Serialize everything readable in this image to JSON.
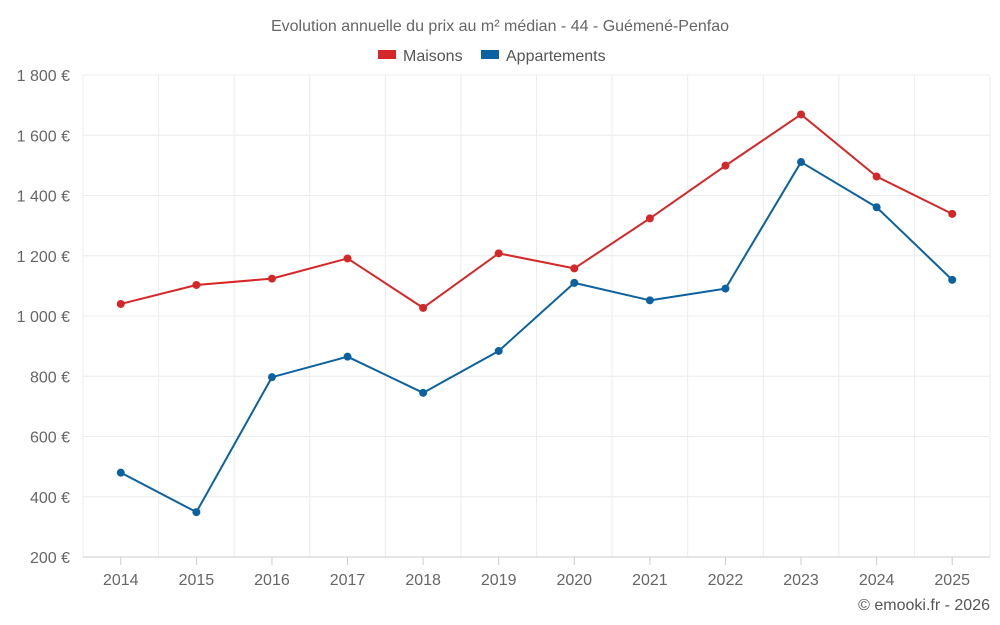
{
  "chart_data": {
    "type": "line",
    "title": "Evolution annuelle du prix au m² médian - 44 - Guémené-Penfao",
    "categories": [
      "2014",
      "2015",
      "2016",
      "2017",
      "2018",
      "2019",
      "2020",
      "2021",
      "2022",
      "2023",
      "2024",
      "2025"
    ],
    "series": [
      {
        "name": "Maisons",
        "color": "#d62728",
        "values": [
          1040,
          1103,
          1124,
          1191,
          1027,
          1208,
          1158,
          1324,
          1499,
          1669,
          1463,
          1339
        ]
      },
      {
        "name": "Appartements",
        "color": "#0c62a0",
        "values": [
          480,
          349,
          797,
          865,
          745,
          884,
          1110,
          1052,
          1091,
          1511,
          1361,
          1120
        ]
      }
    ],
    "y_ticks": [
      "200 €",
      "400 €",
      "600 €",
      "800 €",
      "1 000 €",
      "1 200 €",
      "1 400 €",
      "1 600 €",
      "1 800 €"
    ],
    "ylim": [
      200,
      1800
    ],
    "xlabel": "",
    "ylabel": "",
    "grid": true,
    "legend_position": "top-center"
  },
  "credit": "© emooki.fr - 2026"
}
